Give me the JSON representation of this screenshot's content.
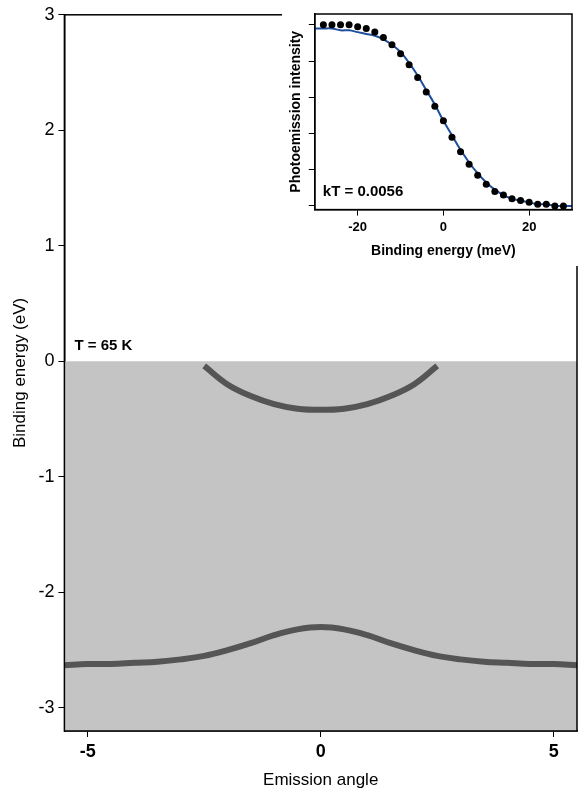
{
  "chart_data": [
    {
      "type": "line",
      "x_label": "Emission angle",
      "y_label": "Binding energy (eV)",
      "annotation": "T = 65 K",
      "x": [
        -5.5,
        -5,
        -4.5,
        -4,
        -3.5,
        -3,
        -2.5,
        -2,
        -1.5,
        -1,
        -0.5,
        0,
        0.5,
        1,
        1.5,
        2,
        2.5,
        3,
        3.5,
        4,
        4.5,
        5,
        5.5
      ],
      "xlim": [
        -5.5,
        5.5
      ],
      "xticks": [
        -5,
        0,
        5
      ],
      "ylim": [
        -3.2,
        3
      ],
      "yticks": [
        -3,
        -2,
        -1,
        0,
        1,
        2,
        3
      ],
      "grid": false,
      "series": [
        {
          "type": "area",
          "color": "#c4c4c4",
          "values": [
            0,
            0,
            0,
            0,
            0,
            0,
            0,
            0,
            0,
            0,
            0,
            0,
            0,
            0,
            0,
            0,
            0,
            0,
            0,
            0,
            0,
            0,
            0
          ]
        },
        {
          "type": "line",
          "color": "#555555",
          "values": [
            null,
            null,
            null,
            null,
            null,
            null,
            -0.04,
            -0.2,
            -0.3,
            -0.37,
            -0.41,
            -0.42,
            -0.41,
            -0.37,
            -0.3,
            -0.2,
            -0.04,
            null,
            null,
            null,
            null,
            null,
            null
          ]
        },
        {
          "type": "line",
          "color": "#555555",
          "values": [
            -2.63,
            -2.62,
            -2.62,
            -2.61,
            -2.6,
            -2.58,
            -2.55,
            -2.5,
            -2.44,
            -2.37,
            -2.32,
            -2.3,
            -2.32,
            -2.37,
            -2.44,
            -2.5,
            -2.55,
            -2.58,
            -2.6,
            -2.61,
            -2.62,
            -2.62,
            -2.63
          ]
        }
      ]
    },
    {
      "type": "scatter",
      "x_label": "Binding energy (meV)",
      "y_label": "Photoemission intensity",
      "annotation": "kT = 0.0056",
      "xlim": [
        -30,
        30
      ],
      "xticks": [
        -20,
        0,
        20
      ],
      "ylim": [
        -0.02,
        1.06
      ],
      "yticks": [
        0,
        0.2,
        0.4,
        0.6,
        0.8,
        1
      ],
      "tick_labels": "x",
      "grid": false,
      "series": [
        {
          "type": "scatter",
          "marker": "circle",
          "color": "#000000",
          "x": [
            -28,
            -26,
            -24,
            -22,
            -20,
            -18,
            -16,
            -14,
            -12,
            -10,
            -8,
            -6,
            -4,
            -2,
            0,
            2,
            4,
            6,
            8,
            10,
            12,
            14,
            16,
            18,
            20,
            22,
            24,
            26,
            28
          ],
          "values": [
            1.0,
            1.0,
            1.0,
            1.0,
            0.99,
            0.98,
            0.96,
            0.93,
            0.89,
            0.84,
            0.78,
            0.71,
            0.63,
            0.55,
            0.47,
            0.38,
            0.3,
            0.23,
            0.17,
            0.12,
            0.08,
            0.06,
            0.04,
            0.03,
            0.02,
            0.01,
            0.01,
            0.0,
            0.0
          ]
        },
        {
          "type": "line",
          "color": "#1f4e9c",
          "x": [
            -30,
            -28,
            -26,
            -24,
            -22,
            -20,
            -18,
            -16,
            -14,
            -12,
            -10,
            -8,
            -6,
            -4,
            -2,
            0,
            2,
            4,
            6,
            8,
            10,
            12,
            14,
            16,
            18,
            20,
            22,
            24,
            26,
            28,
            30
          ],
          "values": [
            0.98,
            0.98,
            0.98,
            0.97,
            0.97,
            0.96,
            0.95,
            0.94,
            0.92,
            0.89,
            0.85,
            0.79,
            0.72,
            0.64,
            0.56,
            0.47,
            0.39,
            0.31,
            0.24,
            0.18,
            0.13,
            0.09,
            0.06,
            0.04,
            0.03,
            0.02,
            0.01,
            0.01,
            0.0,
            0.0,
            0.0
          ]
        }
      ]
    }
  ]
}
